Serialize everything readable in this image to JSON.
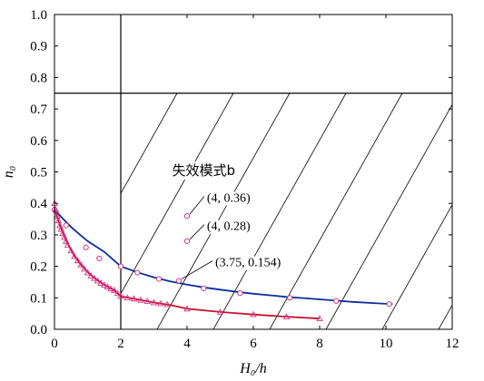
{
  "chart_data": {
    "type": "line",
    "xlabel": "H₀/h",
    "ylabel": "n₀",
    "xlim": [
      0,
      12
    ],
    "ylim": [
      0,
      1.0
    ],
    "x_ticks": [
      "0",
      "2",
      "4",
      "6",
      "8",
      "10",
      "12"
    ],
    "y_ticks": [
      "0.0",
      "0.1",
      "0.2",
      "0.3",
      "0.4",
      "0.5",
      "0.6",
      "0.7",
      "0.8",
      "0.9",
      "1.0"
    ],
    "grid": false,
    "reference_lines": {
      "vertical_x": 2,
      "horizontal_y": 0.75
    },
    "hatched_region": {
      "x_min": 2,
      "x_max": 12,
      "y_min": 0.75,
      "label": "失效模式b",
      "label_at": [
        4.5,
        0.49
      ]
    },
    "series": [
      {
        "color": "#0a2d9e",
        "marker": "circle",
        "marker_color": "#d4358a",
        "curve": [
          [
            0,
            0.38
          ],
          [
            0.25,
            0.352
          ],
          [
            0.5,
            0.325
          ],
          [
            0.75,
            0.302
          ],
          [
            1,
            0.28
          ],
          [
            1.5,
            0.246
          ],
          [
            2,
            0.2
          ],
          [
            2.5,
            0.181
          ],
          [
            3,
            0.165
          ],
          [
            3.5,
            0.152
          ],
          [
            4,
            0.142
          ],
          [
            4.5,
            0.133
          ],
          [
            5,
            0.126
          ],
          [
            5.5,
            0.119
          ],
          [
            6,
            0.113
          ],
          [
            6.5,
            0.108
          ],
          [
            7,
            0.103
          ],
          [
            7.5,
            0.099
          ],
          [
            8,
            0.095
          ],
          [
            8.5,
            0.091
          ],
          [
            9,
            0.087
          ],
          [
            9.5,
            0.084
          ],
          [
            10,
            0.081
          ],
          [
            10.2,
            0.08
          ]
        ],
        "markers": [
          [
            0,
            0.38
          ],
          [
            0.35,
            0.33
          ],
          [
            0.95,
            0.26
          ],
          [
            1.35,
            0.225
          ],
          [
            2,
            0.2
          ],
          [
            2.5,
            0.18
          ],
          [
            3.15,
            0.16
          ],
          [
            4.5,
            0.13
          ],
          [
            5.6,
            0.115
          ],
          [
            7.1,
            0.1
          ],
          [
            8.5,
            0.09
          ],
          [
            10.1,
            0.08
          ]
        ]
      },
      {
        "color": "#c8102e",
        "marker": "triangle",
        "marker_color": "#d4358a",
        "curve": [
          [
            0,
            0.385
          ],
          [
            0.1,
            0.35
          ],
          [
            0.2,
            0.32
          ],
          [
            0.3,
            0.295
          ],
          [
            0.4,
            0.272
          ],
          [
            0.5,
            0.252
          ],
          [
            0.6,
            0.233
          ],
          [
            0.8,
            0.205
          ],
          [
            1,
            0.182
          ],
          [
            1.2,
            0.163
          ],
          [
            1.4,
            0.148
          ],
          [
            1.6,
            0.135
          ],
          [
            1.8,
            0.124
          ],
          [
            2,
            0.105
          ],
          [
            2.5,
            0.095
          ],
          [
            3,
            0.085
          ],
          [
            3.5,
            0.077
          ],
          [
            4,
            0.065
          ],
          [
            5,
            0.055
          ],
          [
            6,
            0.047
          ],
          [
            7,
            0.04
          ],
          [
            8,
            0.034
          ]
        ],
        "markers": [
          [
            0,
            0.4
          ],
          [
            0.04,
            0.38
          ],
          [
            0.08,
            0.36
          ],
          [
            0.12,
            0.345
          ],
          [
            0.16,
            0.33
          ],
          [
            0.2,
            0.318
          ],
          [
            0.25,
            0.305
          ],
          [
            0.3,
            0.292
          ],
          [
            0.35,
            0.28
          ],
          [
            0.4,
            0.268
          ],
          [
            0.5,
            0.25
          ],
          [
            0.6,
            0.232
          ],
          [
            0.7,
            0.218
          ],
          [
            0.8,
            0.205
          ],
          [
            0.9,
            0.192
          ],
          [
            1,
            0.18
          ],
          [
            1.1,
            0.17
          ],
          [
            1.2,
            0.162
          ],
          [
            1.3,
            0.154
          ],
          [
            1.4,
            0.147
          ],
          [
            1.5,
            0.141
          ],
          [
            1.6,
            0.135
          ],
          [
            1.7,
            0.129
          ],
          [
            1.8,
            0.124
          ],
          [
            1.9,
            0.114
          ],
          [
            2,
            0.105
          ],
          [
            2.2,
            0.1
          ],
          [
            2.4,
            0.097
          ],
          [
            2.6,
            0.093
          ],
          [
            2.8,
            0.089
          ],
          [
            3.0,
            0.085
          ],
          [
            3.2,
            0.082
          ],
          [
            3.4,
            0.079
          ],
          [
            4,
            0.065
          ],
          [
            5,
            0.055
          ],
          [
            6,
            0.047
          ],
          [
            7,
            0.04
          ],
          [
            8,
            0.034
          ]
        ]
      }
    ],
    "annotations": [
      {
        "label": "(4, 0.36)",
        "point": [
          4,
          0.36
        ],
        "text_at": [
          4.6,
          0.405
        ],
        "marker_color": "#d4358a"
      },
      {
        "label": "(4, 0.28)",
        "point": [
          4,
          0.28
        ],
        "text_at": [
          4.6,
          0.315
        ],
        "marker_color": "#d4358a"
      },
      {
        "label": "(3.75, 0.154)",
        "point": [
          3.75,
          0.154
        ],
        "text_at": [
          4.85,
          0.2
        ],
        "marker_color": "#d4358a"
      }
    ]
  }
}
